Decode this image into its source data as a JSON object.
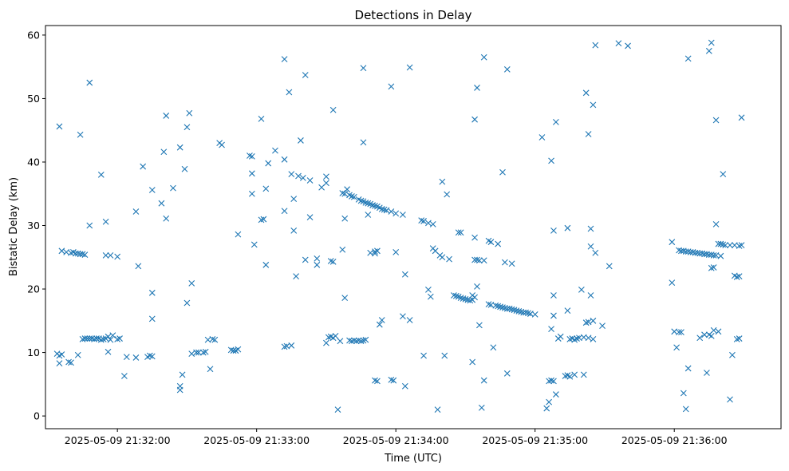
{
  "chart_data": {
    "type": "scatter",
    "title": "Detections in Delay",
    "xlabel": "Time (UTC)",
    "ylabel": "Bistatic Delay (km)",
    "marker": "x",
    "color": "#1f77b4",
    "grid": false,
    "x_ticks": [
      "2025-05-09 21:32:00",
      "2025-05-09 21:33:00",
      "2025-05-09 21:34:00",
      "2025-05-09 21:35:00",
      "2025-05-09 21:36:00"
    ],
    "xlim": [
      "2025-05-09 21:31:29",
      "2025-05-09 21:36:46"
    ],
    "y_ticks": [
      0,
      10,
      20,
      30,
      40,
      50,
      60
    ],
    "ylim": [
      -2,
      61.5
    ],
    "points": [
      [
        "21:31:35",
        45.6
      ],
      [
        "21:31:34",
        9.8
      ],
      [
        "21:31:35",
        9.5
      ],
      [
        "21:31:35",
        8.3
      ],
      [
        "21:31:36",
        9.7
      ],
      [
        "21:31:36",
        26.0
      ],
      [
        "21:31:38",
        25.8
      ],
      [
        "21:31:40",
        25.7
      ],
      [
        "21:31:41",
        25.8
      ],
      [
        "21:31:42",
        25.6
      ],
      [
        "21:31:43",
        25.6
      ],
      [
        "21:31:44",
        25.5
      ],
      [
        "21:31:45",
        25.5
      ],
      [
        "21:31:46",
        25.4
      ],
      [
        "21:31:39",
        8.5
      ],
      [
        "21:31:40",
        8.4
      ],
      [
        "21:31:43",
        9.6
      ],
      [
        "21:31:44",
        44.3
      ],
      [
        "21:31:48",
        52.5
      ],
      [
        "21:31:48",
        30.0
      ],
      [
        "21:31:45",
        12.1
      ],
      [
        "21:31:46",
        12.2
      ],
      [
        "21:31:47",
        12.2
      ],
      [
        "21:31:48",
        12.2
      ],
      [
        "21:31:49",
        12.2
      ],
      [
        "21:31:50",
        12.1
      ],
      [
        "21:31:51",
        12.2
      ],
      [
        "21:31:52",
        12.2
      ],
      [
        "21:31:53",
        12.0
      ],
      [
        "21:31:54",
        12.1
      ],
      [
        "21:31:55",
        12.2
      ],
      [
        "21:31:56",
        12.5
      ],
      [
        "21:31:57",
        12.0
      ],
      [
        "21:31:58",
        12.7
      ],
      [
        "21:32:00",
        12.1
      ],
      [
        "21:32:01",
        12.2
      ],
      [
        "21:31:53",
        38.0
      ],
      [
        "21:31:55",
        30.6
      ],
      [
        "21:31:55",
        25.3
      ],
      [
        "21:31:57",
        25.3
      ],
      [
        "21:32:00",
        25.1
      ],
      [
        "21:31:56",
        10.1
      ],
      [
        "21:32:03",
        6.3
      ],
      [
        "21:32:04",
        9.3
      ],
      [
        "21:32:08",
        9.2
      ],
      [
        "21:32:13",
        9.3
      ],
      [
        "21:32:14",
        9.5
      ],
      [
        "21:32:15",
        9.4
      ],
      [
        "21:32:08",
        32.2
      ],
      [
        "21:32:09",
        23.6
      ],
      [
        "21:32:11",
        39.3
      ],
      [
        "21:32:15",
        35.6
      ],
      [
        "21:32:15",
        19.4
      ],
      [
        "21:32:15",
        15.3
      ],
      [
        "21:32:19",
        33.5
      ],
      [
        "21:32:21",
        47.3
      ],
      [
        "21:32:20",
        41.6
      ],
      [
        "21:32:21",
        31.1
      ],
      [
        "21:32:24",
        35.9
      ],
      [
        "21:32:27",
        42.3
      ],
      [
        "21:32:29",
        38.9
      ],
      [
        "21:32:30",
        45.5
      ],
      [
        "21:32:31",
        47.7
      ],
      [
        "21:32:30",
        17.8
      ],
      [
        "21:32:32",
        20.9
      ],
      [
        "21:32:27",
        4.7
      ],
      [
        "21:32:27",
        4.1
      ],
      [
        "21:32:28",
        6.5
      ],
      [
        "21:32:32",
        9.8
      ],
      [
        "21:32:34",
        10.0
      ],
      [
        "21:32:35",
        10.0
      ],
      [
        "21:32:37",
        10.0
      ],
      [
        "21:32:38",
        10.1
      ],
      [
        "21:32:39",
        12.0
      ],
      [
        "21:32:41",
        12.1
      ],
      [
        "21:32:42",
        12.0
      ],
      [
        "21:32:40",
        7.4
      ],
      [
        "21:32:44",
        43.0
      ],
      [
        "21:32:45",
        42.7
      ],
      [
        "21:32:49",
        10.4
      ],
      [
        "21:32:50",
        10.3
      ],
      [
        "21:32:51",
        10.3
      ],
      [
        "21:32:52",
        10.5
      ],
      [
        "21:32:52",
        28.6
      ],
      [
        "21:32:57",
        41.0
      ],
      [
        "21:32:58",
        40.9
      ],
      [
        "21:32:58",
        38.2
      ],
      [
        "21:32:58",
        35.0
      ],
      [
        "21:32:59",
        27.0
      ],
      [
        "21:33:02",
        46.8
      ],
      [
        "21:33:02",
        30.9
      ],
      [
        "21:33:03",
        31.0
      ],
      [
        "21:33:04",
        35.8
      ],
      [
        "21:33:04",
        23.8
      ],
      [
        "21:33:05",
        39.8
      ],
      [
        "21:33:08",
        41.8
      ],
      [
        "21:33:12",
        40.4
      ],
      [
        "21:33:12",
        56.2
      ],
      [
        "21:33:12",
        32.3
      ],
      [
        "21:33:14",
        51.0
      ],
      [
        "21:33:15",
        38.1
      ],
      [
        "21:33:16",
        34.2
      ],
      [
        "21:33:16",
        29.2
      ],
      [
        "21:33:17",
        22.0
      ],
      [
        "21:33:18",
        37.8
      ],
      [
        "21:33:19",
        43.4
      ],
      [
        "21:33:20",
        37.5
      ],
      [
        "21:33:21",
        53.7
      ],
      [
        "21:33:21",
        24.6
      ],
      [
        "21:33:23",
        37.1
      ],
      [
        "21:33:23",
        31.3
      ],
      [
        "21:33:26",
        24.8
      ],
      [
        "21:33:26",
        23.8
      ],
      [
        "21:33:28",
        36.0
      ],
      [
        "21:33:12",
        10.9
      ],
      [
        "21:33:13",
        11.0
      ],
      [
        "21:33:15",
        11.1
      ],
      [
        "21:33:30",
        37.7
      ],
      [
        "21:33:30",
        36.7
      ],
      [
        "21:33:32",
        24.4
      ],
      [
        "21:33:33",
        24.3
      ],
      [
        "21:33:33",
        48.2
      ],
      [
        "21:33:30",
        11.5
      ],
      [
        "21:33:31",
        12.4
      ],
      [
        "21:33:32",
        12.5
      ],
      [
        "21:33:33",
        12.3
      ],
      [
        "21:33:34",
        12.6
      ],
      [
        "21:33:36",
        11.8
      ],
      [
        "21:33:35",
        1.0
      ],
      [
        "21:33:37",
        26.2
      ],
      [
        "21:33:38",
        31.1
      ],
      [
        "21:33:38",
        18.6
      ],
      [
        "21:33:37",
        35.1
      ],
      [
        "21:33:38",
        35.0
      ],
      [
        "21:33:39",
        35.7
      ],
      [
        "21:33:40",
        34.8
      ],
      [
        "21:33:41",
        34.6
      ],
      [
        "21:33:42",
        34.5
      ],
      [
        "21:33:44",
        34.1
      ],
      [
        "21:33:45",
        33.9
      ],
      [
        "21:33:46",
        33.8
      ],
      [
        "21:33:47",
        33.6
      ],
      [
        "21:33:48",
        33.5
      ],
      [
        "21:33:49",
        33.4
      ],
      [
        "21:33:50",
        33.2
      ],
      [
        "21:33:51",
        33.1
      ],
      [
        "21:33:52",
        33.0
      ],
      [
        "21:33:53",
        32.8
      ],
      [
        "21:33:54",
        32.6
      ],
      [
        "21:33:55",
        32.5
      ],
      [
        "21:33:56",
        32.4
      ],
      [
        "21:33:58",
        32.2
      ],
      [
        "21:34:00",
        31.9
      ],
      [
        "21:33:40",
        11.9
      ],
      [
        "21:33:41",
        11.8
      ],
      [
        "21:33:42",
        11.9
      ],
      [
        "21:33:43",
        11.8
      ],
      [
        "21:33:44",
        11.9
      ],
      [
        "21:33:45",
        11.8
      ],
      [
        "21:33:46",
        11.9
      ],
      [
        "21:33:47",
        12.0
      ],
      [
        "21:33:46",
        43.1
      ],
      [
        "21:33:46",
        54.8
      ],
      [
        "21:33:48",
        31.7
      ],
      [
        "21:33:49",
        25.7
      ],
      [
        "21:33:51",
        25.9
      ],
      [
        "21:33:51",
        25.6
      ],
      [
        "21:33:52",
        26.0
      ],
      [
        "21:33:51",
        5.6
      ],
      [
        "21:33:52",
        5.5
      ],
      [
        "21:33:53",
        14.4
      ],
      [
        "21:33:54",
        15.1
      ],
      [
        "21:33:58",
        5.7
      ],
      [
        "21:33:59",
        5.6
      ],
      [
        "21:33:58",
        51.9
      ],
      [
        "21:34:00",
        25.8
      ],
      [
        "21:34:03",
        31.7
      ],
      [
        "21:34:04",
        22.3
      ],
      [
        "21:34:03",
        15.7
      ],
      [
        "21:34:06",
        15.1
      ],
      [
        "21:34:04",
        4.7
      ],
      [
        "21:34:06",
        54.9
      ],
      [
        "21:34:11",
        30.8
      ],
      [
        "21:34:12",
        30.7
      ],
      [
        "21:34:14",
        30.4
      ],
      [
        "21:34:16",
        30.2
      ],
      [
        "21:34:12",
        9.5
      ],
      [
        "21:34:14",
        19.9
      ],
      [
        "21:34:15",
        18.8
      ],
      [
        "21:34:16",
        26.4
      ],
      [
        "21:34:17",
        26.0
      ],
      [
        "21:34:18",
        1.0
      ],
      [
        "21:34:19",
        25.3
      ],
      [
        "21:34:20",
        25.0
      ],
      [
        "21:34:20",
        36.9
      ],
      [
        "21:34:21",
        9.5
      ],
      [
        "21:34:22",
        34.9
      ],
      [
        "21:34:23",
        24.7
      ],
      [
        "21:34:25",
        19.0
      ],
      [
        "21:34:26",
        18.9
      ],
      [
        "21:34:27",
        18.8
      ],
      [
        "21:34:28",
        18.6
      ],
      [
        "21:34:29",
        18.5
      ],
      [
        "21:34:30",
        18.4
      ],
      [
        "21:34:31",
        18.3
      ],
      [
        "21:34:32",
        18.2
      ],
      [
        "21:34:33",
        18.3
      ],
      [
        "21:34:34",
        18.7
      ],
      [
        "21:34:33",
        19.0
      ],
      [
        "21:34:27",
        28.9
      ],
      [
        "21:34:28",
        28.9
      ],
      [
        "21:34:33",
        8.5
      ],
      [
        "21:34:34",
        24.6
      ],
      [
        "21:34:35",
        24.6
      ],
      [
        "21:34:36",
        24.5
      ],
      [
        "21:34:38",
        24.5
      ],
      [
        "21:34:34",
        28.1
      ],
      [
        "21:34:34",
        46.7
      ],
      [
        "21:34:35",
        51.7
      ],
      [
        "21:34:35",
        20.4
      ],
      [
        "21:34:36",
        14.3
      ],
      [
        "21:34:37",
        1.3
      ],
      [
        "21:34:38",
        5.6
      ],
      [
        "21:34:38",
        56.5
      ],
      [
        "21:34:40",
        27.6
      ],
      [
        "21:34:41",
        27.4
      ],
      [
        "21:34:42",
        10.8
      ],
      [
        "21:34:44",
        27.1
      ],
      [
        "21:34:46",
        38.4
      ],
      [
        "21:34:47",
        24.2
      ],
      [
        "21:34:48",
        6.7
      ],
      [
        "21:34:48",
        54.6
      ],
      [
        "21:34:50",
        24.0
      ],
      [
        "21:34:40",
        17.6
      ],
      [
        "21:34:41",
        17.5
      ],
      [
        "21:34:43",
        17.4
      ],
      [
        "21:34:44",
        17.3
      ],
      [
        "21:34:45",
        17.2
      ],
      [
        "21:34:46",
        17.1
      ],
      [
        "21:34:47",
        17.0
      ],
      [
        "21:34:48",
        16.9
      ],
      [
        "21:34:49",
        16.9
      ],
      [
        "21:34:50",
        16.8
      ],
      [
        "21:34:51",
        16.7
      ],
      [
        "21:34:52",
        16.6
      ],
      [
        "21:34:53",
        16.5
      ],
      [
        "21:34:54",
        16.4
      ],
      [
        "21:34:55",
        16.3
      ],
      [
        "21:34:56",
        16.3
      ],
      [
        "21:34:57",
        16.2
      ],
      [
        "21:34:58",
        16.1
      ],
      [
        "21:35:00",
        16.0
      ],
      [
        "21:35:03",
        43.9
      ],
      [
        "21:35:07",
        40.2
      ],
      [
        "21:35:08",
        29.2
      ],
      [
        "21:35:09",
        46.3
      ],
      [
        "21:35:07",
        13.7
      ],
      [
        "21:35:08",
        19.0
      ],
      [
        "21:35:08",
        15.8
      ],
      [
        "21:35:10",
        12.2
      ],
      [
        "21:35:11",
        12.5
      ],
      [
        "21:35:05",
        1.2
      ],
      [
        "21:35:06",
        2.2
      ],
      [
        "21:35:06",
        5.5
      ],
      [
        "21:35:07",
        5.6
      ],
      [
        "21:35:08",
        5.5
      ],
      [
        "21:35:09",
        3.4
      ],
      [
        "21:35:13",
        6.3
      ],
      [
        "21:35:14",
        6.4
      ],
      [
        "21:35:15",
        6.2
      ],
      [
        "21:35:17",
        6.5
      ],
      [
        "21:35:21",
        6.5
      ],
      [
        "21:35:14",
        16.6
      ],
      [
        "21:35:14",
        29.6
      ],
      [
        "21:35:15",
        12.1
      ],
      [
        "21:35:16",
        12.2
      ],
      [
        "21:35:17",
        12.0
      ],
      [
        "21:35:18",
        12.2
      ],
      [
        "21:35:19",
        12.3
      ],
      [
        "21:35:21",
        12.4
      ],
      [
        "21:35:23",
        12.3
      ],
      [
        "21:35:25",
        12.1
      ],
      [
        "21:35:20",
        19.9
      ],
      [
        "21:35:22",
        14.7
      ],
      [
        "21:35:23",
        14.8
      ],
      [
        "21:35:24",
        19.0
      ],
      [
        "21:35:22",
        50.9
      ],
      [
        "21:35:23",
        44.4
      ],
      [
        "21:35:24",
        29.5
      ],
      [
        "21:35:24",
        26.7
      ],
      [
        "21:35:25",
        49.0
      ],
      [
        "21:35:26",
        25.7
      ],
      [
        "21:35:26",
        58.4
      ],
      [
        "21:35:25",
        15.0
      ],
      [
        "21:35:29",
        14.2
      ],
      [
        "21:35:32",
        23.6
      ],
      [
        "21:35:36",
        58.7
      ],
      [
        "21:35:40",
        58.3
      ],
      [
        "21:35:59",
        27.4
      ],
      [
        "21:35:59",
        21.0
      ],
      [
        "21:36:00",
        13.3
      ],
      [
        "21:36:01",
        10.8
      ],
      [
        "21:36:02",
        13.2
      ],
      [
        "21:36:03",
        13.2
      ],
      [
        "21:36:04",
        3.6
      ],
      [
        "21:36:05",
        1.1
      ],
      [
        "21:36:06",
        7.5
      ],
      [
        "21:36:06",
        56.3
      ],
      [
        "21:36:02",
        26.1
      ],
      [
        "21:36:03",
        26.0
      ],
      [
        "21:36:04",
        26.0
      ],
      [
        "21:36:05",
        25.9
      ],
      [
        "21:36:06",
        25.9
      ],
      [
        "21:36:07",
        25.8
      ],
      [
        "21:36:08",
        25.8
      ],
      [
        "21:36:09",
        25.7
      ],
      [
        "21:36:10",
        25.7
      ],
      [
        "21:36:11",
        25.6
      ],
      [
        "21:36:12",
        25.6
      ],
      [
        "21:36:13",
        25.5
      ],
      [
        "21:36:14",
        25.5
      ],
      [
        "21:36:15",
        25.4
      ],
      [
        "21:36:16",
        25.4
      ],
      [
        "21:36:17",
        25.3
      ],
      [
        "21:36:18",
        25.3
      ],
      [
        "21:36:20",
        25.2
      ],
      [
        "21:36:11",
        12.3
      ],
      [
        "21:36:13",
        12.8
      ],
      [
        "21:36:14",
        6.8
      ],
      [
        "21:36:15",
        12.8
      ],
      [
        "21:36:16",
        12.6
      ],
      [
        "21:36:17",
        13.5
      ],
      [
        "21:36:19",
        13.3
      ],
      [
        "21:36:16",
        23.3
      ],
      [
        "21:36:17",
        23.4
      ],
      [
        "21:36:15",
        57.5
      ],
      [
        "21:36:16",
        58.8
      ],
      [
        "21:36:18",
        46.6
      ],
      [
        "21:36:18",
        30.2
      ],
      [
        "21:36:19",
        27.1
      ],
      [
        "21:36:20",
        27.1
      ],
      [
        "21:36:21",
        27.0
      ],
      [
        "21:36:22",
        26.9
      ],
      [
        "21:36:24",
        26.9
      ],
      [
        "21:36:26",
        26.9
      ],
      [
        "21:36:28",
        26.8
      ],
      [
        "21:36:29",
        26.9
      ],
      [
        "21:36:21",
        38.1
      ],
      [
        "21:36:24",
        2.6
      ],
      [
        "21:36:25",
        9.6
      ],
      [
        "21:36:26",
        22.1
      ],
      [
        "21:36:27",
        21.9
      ],
      [
        "21:36:28",
        22.0
      ],
      [
        "21:36:27",
        12.1
      ],
      [
        "21:36:28",
        12.2
      ],
      [
        "21:36:29",
        47.0
      ]
    ]
  }
}
